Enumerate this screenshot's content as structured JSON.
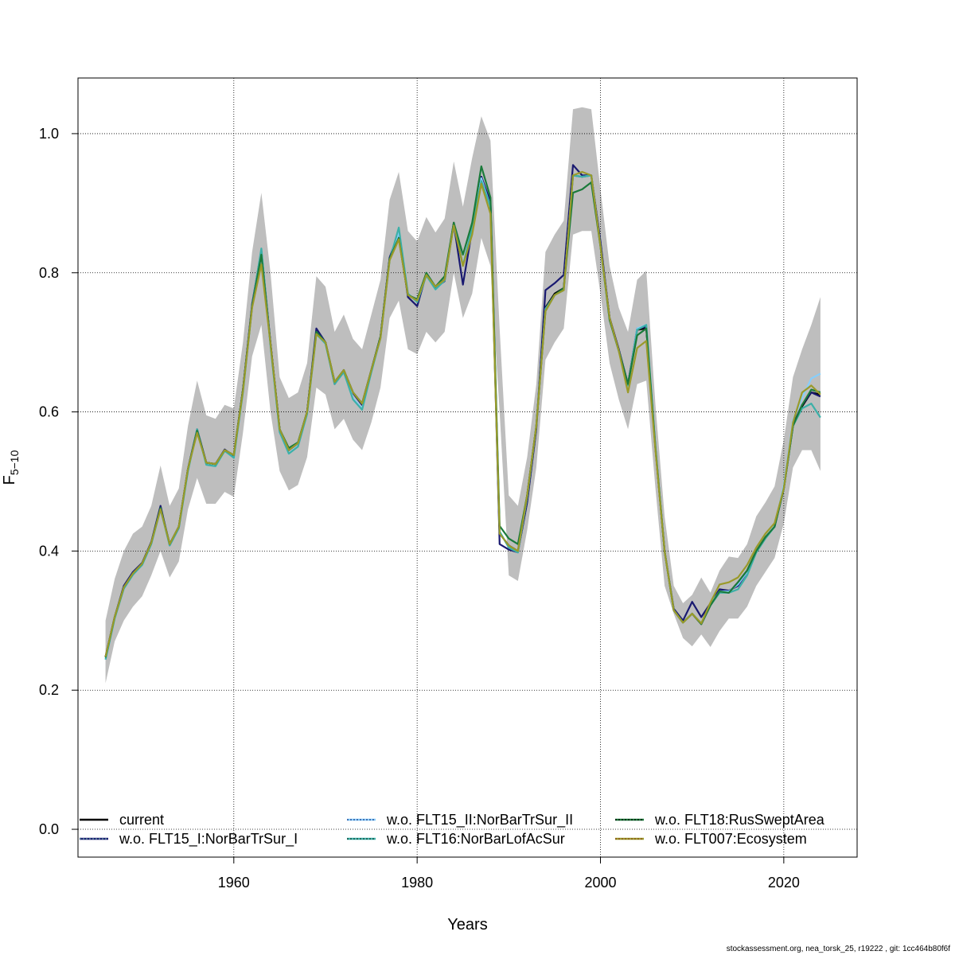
{
  "footer_text": "stockassessment.org, nea_torsk_25, r19222 , git: 1cc464b80f6f",
  "colors": {
    "band": "#bebebe",
    "grid": "#000000",
    "axes": "#000000"
  },
  "chart_data": {
    "type": "line",
    "xlabel": "Years",
    "ylabel_main": "F",
    "ylabel_sub": "5−10",
    "xlim": [
      1943,
      2028
    ],
    "ylim": [
      -0.04,
      1.08
    ],
    "xticks": [
      1960,
      1980,
      2000,
      2020
    ],
    "xtick_labels": [
      "1960",
      "1980",
      "2000",
      "2020"
    ],
    "yticks": [
      0.0,
      0.2,
      0.4,
      0.6,
      0.8,
      1.0
    ],
    "ytick_labels": [
      "0.0",
      "0.2",
      "0.4",
      "0.6",
      "0.8",
      "1.0"
    ],
    "grid": true,
    "legend_placement": "bottom",
    "x": [
      1946,
      1947,
      1948,
      1949,
      1950,
      1951,
      1952,
      1953,
      1954,
      1955,
      1956,
      1957,
      1958,
      1959,
      1960,
      1961,
      1962,
      1963,
      1964,
      1965,
      1966,
      1967,
      1968,
      1969,
      1970,
      1971,
      1972,
      1973,
      1974,
      1975,
      1976,
      1977,
      1978,
      1979,
      1980,
      1981,
      1982,
      1983,
      1984,
      1985,
      1986,
      1987,
      1988,
      1989,
      1990,
      1991,
      1992,
      1993,
      1994,
      1995,
      1996,
      1997,
      1998,
      1999,
      2000,
      2001,
      2002,
      2003,
      2004,
      2005,
      2006,
      2007,
      2008,
      2009,
      2010,
      2011,
      2012,
      2013,
      2014,
      2015,
      2016,
      2017,
      2018,
      2019,
      2020,
      2021,
      2022,
      2023,
      2024
    ],
    "band": {
      "lower": [
        0.21,
        0.27,
        0.3,
        0.32,
        0.335,
        0.365,
        0.4,
        0.362,
        0.385,
        0.46,
        0.505,
        0.468,
        0.468,
        0.485,
        0.478,
        0.57,
        0.68,
        0.725,
        0.6,
        0.515,
        0.487,
        0.495,
        0.535,
        0.635,
        0.625,
        0.575,
        0.59,
        0.56,
        0.545,
        0.585,
        0.635,
        0.735,
        0.76,
        0.69,
        0.683,
        0.715,
        0.7,
        0.715,
        0.8,
        0.735,
        0.77,
        0.85,
        0.81,
        0.6,
        0.365,
        0.357,
        0.43,
        0.52,
        0.675,
        0.7,
        0.72,
        0.855,
        0.86,
        0.86,
        0.77,
        0.67,
        0.618,
        0.575,
        0.64,
        0.645,
        0.49,
        0.35,
        0.31,
        0.275,
        0.263,
        0.28,
        0.262,
        0.285,
        0.303,
        0.303,
        0.32,
        0.35,
        0.37,
        0.39,
        0.44,
        0.52,
        0.545,
        0.545,
        0.515
      ],
      "upper": [
        0.3,
        0.36,
        0.4,
        0.425,
        0.435,
        0.465,
        0.523,
        0.465,
        0.49,
        0.58,
        0.645,
        0.595,
        0.59,
        0.61,
        0.605,
        0.7,
        0.83,
        0.915,
        0.8,
        0.65,
        0.62,
        0.628,
        0.67,
        0.795,
        0.78,
        0.715,
        0.74,
        0.705,
        0.69,
        0.74,
        0.79,
        0.905,
        0.945,
        0.86,
        0.845,
        0.88,
        0.858,
        0.878,
        0.96,
        0.895,
        0.965,
        1.025,
        0.99,
        0.72,
        0.48,
        0.465,
        0.535,
        0.64,
        0.83,
        0.855,
        0.875,
        1.035,
        1.038,
        1.035,
        0.92,
        0.81,
        0.75,
        0.715,
        0.79,
        0.803,
        0.61,
        0.45,
        0.35,
        0.325,
        0.337,
        0.362,
        0.34,
        0.372,
        0.392,
        0.39,
        0.41,
        0.45,
        0.47,
        0.493,
        0.56,
        0.65,
        0.69,
        0.725,
        0.765
      ]
    },
    "series": [
      {
        "name": "current",
        "color": "#000000",
        "dash_color": null,
        "values": [
          0.248,
          0.305,
          0.348,
          0.368,
          0.382,
          0.412,
          0.462,
          0.41,
          0.435,
          0.518,
          0.573,
          0.527,
          0.525,
          0.545,
          0.538,
          0.632,
          0.752,
          0.828,
          0.698,
          0.575,
          0.545,
          0.555,
          0.6,
          0.715,
          0.7,
          0.643,
          0.66,
          0.628,
          0.612,
          0.66,
          0.708,
          0.82,
          0.85,
          0.768,
          0.76,
          0.797,
          0.78,
          0.79,
          0.872,
          0.81,
          0.86,
          0.938,
          0.9,
          0.425,
          0.408,
          0.4,
          0.48,
          0.58,
          0.75,
          0.77,
          0.778,
          0.94,
          0.938,
          0.94,
          0.84,
          0.735,
          0.69,
          0.638,
          0.718,
          0.72,
          0.548,
          0.4,
          0.315,
          0.297,
          0.31,
          0.295,
          0.322,
          0.342,
          0.34,
          0.355,
          0.372,
          0.4,
          0.42,
          0.435,
          0.49,
          0.58,
          0.608,
          0.628,
          0.625
        ]
      },
      {
        "name": "w.o. FLT15_I:NorBarTrSur_I",
        "color": "#191970",
        "dash_color": "#5f9ea0",
        "values": [
          0.248,
          0.305,
          0.35,
          0.37,
          0.383,
          0.413,
          0.465,
          0.408,
          0.433,
          0.518,
          0.575,
          0.527,
          0.525,
          0.546,
          0.536,
          0.632,
          0.755,
          0.832,
          0.699,
          0.575,
          0.545,
          0.555,
          0.6,
          0.72,
          0.7,
          0.64,
          0.66,
          0.627,
          0.61,
          0.66,
          0.708,
          0.822,
          0.857,
          0.765,
          0.752,
          0.798,
          0.778,
          0.788,
          0.87,
          0.783,
          0.862,
          0.938,
          0.902,
          0.41,
          0.402,
          0.398,
          0.47,
          0.575,
          0.775,
          0.785,
          0.797,
          0.955,
          0.94,
          0.94,
          0.845,
          0.735,
          0.69,
          0.64,
          0.72,
          0.722,
          0.548,
          0.4,
          0.317,
          0.3,
          0.327,
          0.305,
          0.325,
          0.345,
          0.343,
          0.35,
          0.37,
          0.4,
          0.42,
          0.435,
          0.49,
          0.582,
          0.61,
          0.628,
          0.622
        ]
      },
      {
        "name": "w.o. FLT15_II:NorBarTrSur_II",
        "color": "#87cefa",
        "dash_color": "#1e3a8a",
        "values": [
          0.244,
          0.303,
          0.346,
          0.366,
          0.38,
          0.41,
          0.46,
          0.408,
          0.433,
          0.515,
          0.572,
          0.524,
          0.522,
          0.544,
          0.534,
          0.628,
          0.75,
          0.83,
          0.695,
          0.571,
          0.54,
          0.551,
          0.597,
          0.712,
          0.698,
          0.642,
          0.658,
          0.62,
          0.605,
          0.657,
          0.706,
          0.818,
          0.858,
          0.77,
          0.758,
          0.796,
          0.776,
          0.789,
          0.87,
          0.81,
          0.865,
          0.936,
          0.895,
          0.428,
          0.405,
          0.398,
          0.478,
          0.58,
          0.748,
          0.768,
          0.775,
          0.94,
          0.938,
          0.94,
          0.838,
          0.733,
          0.688,
          0.638,
          0.72,
          0.725,
          0.55,
          0.4,
          0.315,
          0.297,
          0.31,
          0.296,
          0.324,
          0.342,
          0.342,
          0.352,
          0.37,
          0.4,
          0.42,
          0.436,
          0.495,
          0.588,
          0.62,
          0.648,
          0.655
        ]
      },
      {
        "name": "w.o. FLT16:NorBarLofAcSur",
        "color": "#3cb0a8",
        "dash_color": "#0b3d2e",
        "values": [
          0.244,
          0.303,
          0.346,
          0.366,
          0.38,
          0.41,
          0.46,
          0.408,
          0.433,
          0.515,
          0.575,
          0.524,
          0.522,
          0.544,
          0.534,
          0.628,
          0.752,
          0.835,
          0.695,
          0.571,
          0.54,
          0.55,
          0.597,
          0.712,
          0.698,
          0.64,
          0.657,
          0.618,
          0.603,
          0.657,
          0.706,
          0.818,
          0.865,
          0.77,
          0.758,
          0.796,
          0.776,
          0.789,
          0.87,
          0.81,
          0.865,
          0.932,
          0.895,
          0.428,
          0.405,
          0.398,
          0.478,
          0.58,
          0.748,
          0.768,
          0.775,
          0.94,
          0.938,
          0.94,
          0.838,
          0.733,
          0.688,
          0.638,
          0.718,
          0.725,
          0.55,
          0.4,
          0.315,
          0.297,
          0.31,
          0.296,
          0.322,
          0.34,
          0.34,
          0.345,
          0.365,
          0.398,
          0.418,
          0.435,
          0.49,
          0.58,
          0.605,
          0.612,
          0.592
        ]
      },
      {
        "name": "w.o. FLT18:RusSweptArea",
        "color": "#1a7a3a",
        "dash_color": "#000000",
        "values": [
          0.247,
          0.305,
          0.348,
          0.368,
          0.382,
          0.412,
          0.462,
          0.41,
          0.435,
          0.518,
          0.573,
          0.527,
          0.525,
          0.545,
          0.538,
          0.632,
          0.752,
          0.826,
          0.698,
          0.575,
          0.548,
          0.556,
          0.6,
          0.715,
          0.7,
          0.643,
          0.66,
          0.628,
          0.612,
          0.66,
          0.708,
          0.82,
          0.85,
          0.768,
          0.762,
          0.8,
          0.78,
          0.795,
          0.872,
          0.826,
          0.872,
          0.953,
          0.908,
          0.436,
          0.418,
          0.41,
          0.48,
          0.58,
          0.745,
          0.768,
          0.778,
          0.915,
          0.92,
          0.93,
          0.838,
          0.732,
          0.688,
          0.64,
          0.71,
          0.72,
          0.548,
          0.4,
          0.315,
          0.297,
          0.31,
          0.295,
          0.322,
          0.342,
          0.34,
          0.355,
          0.372,
          0.4,
          0.42,
          0.435,
          0.49,
          0.58,
          0.61,
          0.632,
          0.628
        ]
      },
      {
        "name": "w.o. FLT007:Ecosystem",
        "color": "#9a9a2a",
        "dash_color": "#8b4513",
        "values": [
          0.248,
          0.305,
          0.348,
          0.368,
          0.382,
          0.412,
          0.46,
          0.41,
          0.435,
          0.518,
          0.57,
          0.527,
          0.525,
          0.545,
          0.538,
          0.63,
          0.75,
          0.812,
          0.698,
          0.575,
          0.545,
          0.555,
          0.6,
          0.712,
          0.7,
          0.643,
          0.66,
          0.628,
          0.612,
          0.66,
          0.706,
          0.818,
          0.848,
          0.768,
          0.76,
          0.797,
          0.78,
          0.79,
          0.868,
          0.81,
          0.855,
          0.928,
          0.885,
          0.425,
          0.408,
          0.4,
          0.48,
          0.58,
          0.745,
          0.768,
          0.775,
          0.94,
          0.945,
          0.94,
          0.838,
          0.735,
          0.688,
          0.628,
          0.692,
          0.702,
          0.545,
          0.4,
          0.315,
          0.297,
          0.31,
          0.296,
          0.326,
          0.352,
          0.355,
          0.362,
          0.38,
          0.405,
          0.425,
          0.44,
          0.49,
          0.585,
          0.628,
          0.638,
          0.625
        ]
      }
    ]
  }
}
